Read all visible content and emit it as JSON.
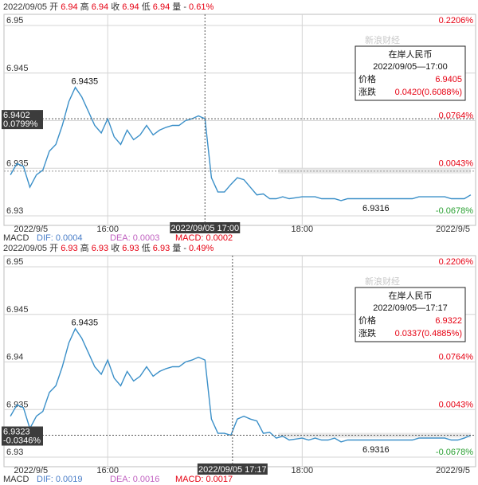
{
  "panels": [
    {
      "quote_bar": {
        "date": "2022/09/05",
        "open_label": "开",
        "open_value": "6.94",
        "high_label": "高",
        "high_value": "6.94",
        "close_label": "收",
        "close_value": "6.94",
        "low_label": "低",
        "low_value": "6.94",
        "volume_label": "量",
        "volume_value": "-",
        "change": "0.61%"
      },
      "tooltip": {
        "title": "在岸人民币",
        "datetime": "2022/09/05—17:00",
        "price_label": "价格",
        "price_value": "6.9405",
        "change_label": "涨跌",
        "change_value": "0.0420(0.6088%)"
      },
      "crosshair": {
        "x": "17:00",
        "value": "6.9402",
        "pct": "0.0799%",
        "time_label": "2022/09/05 17:00"
      },
      "high_annotation": "6.9435",
      "low_annotation": "6.9316",
      "macd_bar": {
        "macd": "MACD",
        "dif": "DIF: 0.0004",
        "dea": "DEA: 0.0003",
        "macd_value": "MACD: 0.0002"
      },
      "watermark": "新浪财经",
      "chart_data": {
        "type": "line",
        "y_ticks": [
          "6.95",
          "6.945",
          "6.94",
          "6.935",
          "6.93"
        ],
        "ylim": [
          6.93,
          6.95
        ],
        "pct_ticks": [
          "0.2206%",
          "0.0764%",
          "0.0043%",
          "-0.0678%"
        ],
        "pct_tick_values": [
          6.95,
          6.94,
          6.935,
          6.93
        ],
        "x_ticks": [
          "2022/9/5",
          "16:00",
          "18:00",
          "2022/9/5"
        ],
        "x_tick_values": [
          "15:06",
          "16:00",
          "18:00",
          "19:44"
        ],
        "reference_price": 6.9347,
        "series": [
          {
            "x": [
              "15:00",
              "15:04",
              "15:08",
              "15:12",
              "15:16",
              "15:20",
              "15:24",
              "15:28",
              "15:32",
              "15:36",
              "15:40",
              "15:44",
              "15:48",
              "15:52",
              "15:56",
              "16:00",
              "16:04",
              "16:08",
              "16:12",
              "16:16",
              "16:20",
              "16:24",
              "16:28",
              "16:32",
              "16:36",
              "16:40",
              "16:44",
              "16:48",
              "16:52",
              "16:56",
              "17:00",
              "17:04",
              "17:08",
              "17:12",
              "17:16",
              "17:20",
              "17:24",
              "17:28",
              "17:32",
              "17:36",
              "17:40",
              "17:44",
              "17:48",
              "17:52",
              "17:56",
              "18:00",
              "18:04",
              "18:08",
              "18:12",
              "18:16",
              "18:20",
              "18:24",
              "18:28",
              "18:32",
              "18:36",
              "18:40",
              "18:44",
              "18:48",
              "18:52",
              "18:56",
              "19:00",
              "19:04",
              "19:08",
              "19:12",
              "19:16",
              "19:20",
              "19:24",
              "19:28",
              "19:32",
              "19:36",
              "19:40",
              "19:44"
            ],
            "values": [
              6.9343,
              6.9355,
              6.9352,
              6.933,
              6.9343,
              6.9348,
              6.9368,
              6.9375,
              6.9395,
              6.942,
              6.9435,
              6.9425,
              6.941,
              6.9395,
              6.9387,
              6.9402,
              6.9383,
              6.9375,
              6.939,
              6.938,
              6.9385,
              6.9395,
              6.9385,
              6.939,
              6.9393,
              6.9395,
              6.9395,
              6.94,
              6.9402,
              6.9405,
              6.9402,
              6.934,
              6.9325,
              6.9325,
              6.9333,
              6.934,
              6.9338,
              6.933,
              6.9322,
              6.9323,
              6.9318,
              6.9318,
              6.932,
              6.9318,
              6.9319,
              6.932,
              6.932,
              6.932,
              6.9318,
              6.9318,
              6.9318,
              6.9316,
              6.9318,
              6.9318,
              6.9318,
              6.9318,
              6.9318,
              6.9318,
              6.9318,
              6.9318,
              6.9318,
              6.9318,
              6.9318,
              6.932,
              6.932,
              6.932,
              6.932,
              6.932,
              6.9318,
              6.9318,
              6.9318,
              6.9322
            ]
          }
        ]
      }
    },
    {
      "quote_bar": {
        "date": "2022/09/05",
        "open_label": "开",
        "open_value": "6.93",
        "high_label": "高",
        "high_value": "6.93",
        "close_label": "收",
        "close_value": "6.93",
        "low_label": "低",
        "low_value": "6.93",
        "volume_label": "量",
        "volume_value": "-",
        "change": "0.49%"
      },
      "tooltip": {
        "title": "在岸人民币",
        "datetime": "2022/09/05—17:17",
        "price_label": "价格",
        "price_value": "6.9322",
        "change_label": "涨跌",
        "change_value": "0.0337(0.4885%)"
      },
      "crosshair": {
        "x": "17:17",
        "value": "6.9323",
        "pct": "-0.0346%",
        "time_label": "2022/09/05 17:17"
      },
      "high_annotation": "6.9435",
      "low_annotation": "6.9316",
      "macd_bar": {
        "macd": "MACD",
        "dif": "DIF: 0.0019",
        "dea": "DEA: 0.0016",
        "macd_value": "MACD: 0.0017"
      },
      "watermark": "新浪财经",
      "chart_data": {
        "type": "line",
        "y_ticks": [
          "6.95",
          "6.945",
          "6.94",
          "6.935",
          "6.93"
        ],
        "ylim": [
          6.93,
          6.95
        ],
        "pct_ticks": [
          "0.2206%",
          "0.0764%",
          "0.0043%",
          "-0.0678%"
        ],
        "pct_tick_values": [
          6.95,
          6.94,
          6.935,
          6.93
        ],
        "x_ticks": [
          "2022/9/5",
          "16:00",
          "18:00",
          "2022/9/5"
        ],
        "x_tick_values": [
          "15:06",
          "16:00",
          "18:00",
          "19:44"
        ],
        "reference_price": 6.9323,
        "series": [
          {
            "x": [
              "15:00",
              "15:04",
              "15:08",
              "15:12",
              "15:16",
              "15:20",
              "15:24",
              "15:28",
              "15:32",
              "15:36",
              "15:40",
              "15:44",
              "15:48",
              "15:52",
              "15:56",
              "16:00",
              "16:04",
              "16:08",
              "16:12",
              "16:16",
              "16:20",
              "16:24",
              "16:28",
              "16:32",
              "16:36",
              "16:40",
              "16:44",
              "16:48",
              "16:52",
              "16:56",
              "17:00",
              "17:04",
              "17:08",
              "17:12",
              "17:16",
              "17:20",
              "17:24",
              "17:28",
              "17:32",
              "17:36",
              "17:40",
              "17:44",
              "17:48",
              "17:52",
              "17:56",
              "18:00",
              "18:04",
              "18:08",
              "18:12",
              "18:16",
              "18:20",
              "18:24",
              "18:28",
              "18:32",
              "18:36",
              "18:40",
              "18:44",
              "18:48",
              "18:52",
              "18:56",
              "19:00",
              "19:04",
              "19:08",
              "19:12",
              "19:16",
              "19:20",
              "19:24",
              "19:28",
              "19:32",
              "19:36",
              "19:40",
              "19:44"
            ],
            "values": [
              6.9343,
              6.9355,
              6.9352,
              6.933,
              6.9343,
              6.9348,
              6.9368,
              6.9375,
              6.9395,
              6.942,
              6.9435,
              6.9425,
              6.941,
              6.9395,
              6.9387,
              6.9402,
              6.9383,
              6.9375,
              6.939,
              6.938,
              6.9385,
              6.9395,
              6.9385,
              6.939,
              6.9393,
              6.9395,
              6.9395,
              6.94,
              6.9402,
              6.9405,
              6.9402,
              6.934,
              6.9325,
              6.9325,
              6.9323,
              6.934,
              6.9343,
              6.934,
              6.9338,
              6.9325,
              6.9326,
              6.932,
              6.9322,
              6.9318,
              6.9319,
              6.932,
              6.9318,
              6.932,
              6.9318,
              6.9318,
              6.932,
              6.9316,
              6.9318,
              6.9318,
              6.9318,
              6.9318,
              6.9318,
              6.9318,
              6.9318,
              6.9318,
              6.9318,
              6.9318,
              6.9318,
              6.932,
              6.932,
              6.932,
              6.932,
              6.932,
              6.9318,
              6.9318,
              6.932,
              6.9323
            ]
          }
        ]
      }
    }
  ]
}
